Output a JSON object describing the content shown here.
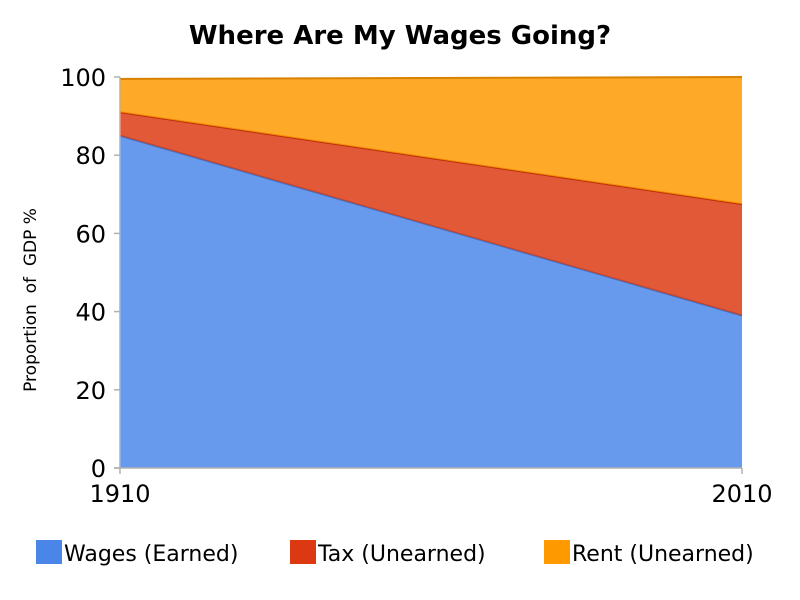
{
  "chart_data": {
    "type": "area",
    "stacked": true,
    "title": "Where Are My Wages Going?",
    "xlabel": "",
    "ylabel": "Proportion  of  GDP %",
    "x": [
      1910,
      2010
    ],
    "x_tick_labels": [
      "1910",
      "2010"
    ],
    "ylim": [
      0,
      100
    ],
    "y_ticks": [
      0,
      20,
      40,
      60,
      80,
      100
    ],
    "grid": false,
    "legend_position": "bottom",
    "series": [
      {
        "name": "Wages (Earned)",
        "values": [
          85,
          39
        ],
        "color": "#4a86e8"
      },
      {
        "name": "Tax (Unearned)",
        "values": [
          6,
          28.5
        ],
        "color": "#dc3912"
      },
      {
        "name": "Rent (Unearned)",
        "values": [
          8.5,
          32.5
        ],
        "color": "#ff9900"
      }
    ]
  }
}
